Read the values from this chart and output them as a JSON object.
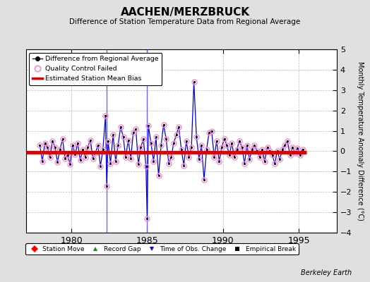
{
  "title": "AACHEN/MERZBRUCK",
  "subtitle": "Difference of Station Temperature Data from Regional Average",
  "ylabel": "Monthly Temperature Anomaly Difference (°C)",
  "xlim": [
    1977.0,
    1997.5
  ],
  "ylim": [
    -4,
    5
  ],
  "yticks": [
    -4,
    -3,
    -2,
    -1,
    0,
    1,
    2,
    3,
    4,
    5
  ],
  "xticks": [
    1980,
    1985,
    1990,
    1995
  ],
  "mean_bias": -0.05,
  "bias_start": 1977.0,
  "bias_end": 1995.5,
  "background_color": "#e0e0e0",
  "plot_bg_color": "#ffffff",
  "data_color": "#0000dd",
  "bias_color": "#dd0000",
  "qc_color": "#ff88cc",
  "berkeley_earth_text": "Berkeley Earth",
  "data": [
    [
      1977.92,
      0.3
    ],
    [
      1978.08,
      -0.5
    ],
    [
      1978.25,
      0.4
    ],
    [
      1978.42,
      0.2
    ],
    [
      1978.58,
      -0.3
    ],
    [
      1978.75,
      0.5
    ],
    [
      1978.92,
      0.2
    ],
    [
      1979.08,
      -0.55
    ],
    [
      1979.25,
      0.1
    ],
    [
      1979.42,
      0.6
    ],
    [
      1979.58,
      -0.35
    ],
    [
      1979.75,
      -0.2
    ],
    [
      1979.92,
      -0.65
    ],
    [
      1980.08,
      0.3
    ],
    [
      1980.25,
      -0.15
    ],
    [
      1980.42,
      0.4
    ],
    [
      1980.58,
      -0.45
    ],
    [
      1980.75,
      0.1
    ],
    [
      1980.92,
      -0.3
    ],
    [
      1981.08,
      0.2
    ],
    [
      1981.25,
      0.55
    ],
    [
      1981.42,
      -0.35
    ],
    [
      1981.58,
      -0.1
    ],
    [
      1981.75,
      0.3
    ],
    [
      1981.92,
      -0.75
    ],
    [
      1982.08,
      0.1
    ],
    [
      1982.25,
      1.75
    ],
    [
      1982.33,
      -1.7
    ],
    [
      1982.42,
      0.5
    ],
    [
      1982.58,
      -0.6
    ],
    [
      1982.75,
      0.8
    ],
    [
      1982.92,
      -0.5
    ],
    [
      1983.08,
      0.3
    ],
    [
      1983.25,
      1.2
    ],
    [
      1983.42,
      0.7
    ],
    [
      1983.58,
      -0.3
    ],
    [
      1983.75,
      0.55
    ],
    [
      1983.92,
      -0.35
    ],
    [
      1984.08,
      0.9
    ],
    [
      1984.25,
      1.1
    ],
    [
      1984.42,
      -0.65
    ],
    [
      1984.58,
      0.2
    ],
    [
      1984.75,
      0.6
    ],
    [
      1984.92,
      -0.75
    ],
    [
      1985.0,
      -3.3
    ],
    [
      1985.08,
      1.25
    ],
    [
      1985.25,
      0.4
    ],
    [
      1985.42,
      -0.5
    ],
    [
      1985.58,
      0.7
    ],
    [
      1985.75,
      -1.2
    ],
    [
      1985.92,
      0.3
    ],
    [
      1986.08,
      1.3
    ],
    [
      1986.25,
      0.6
    ],
    [
      1986.42,
      -0.6
    ],
    [
      1986.58,
      -0.3
    ],
    [
      1986.75,
      0.4
    ],
    [
      1986.92,
      0.8
    ],
    [
      1987.08,
      1.2
    ],
    [
      1987.25,
      0.1
    ],
    [
      1987.42,
      -0.7
    ],
    [
      1987.58,
      0.5
    ],
    [
      1987.75,
      -0.3
    ],
    [
      1987.92,
      0.2
    ],
    [
      1988.08,
      3.4
    ],
    [
      1988.25,
      0.7
    ],
    [
      1988.42,
      -0.4
    ],
    [
      1988.58,
      0.3
    ],
    [
      1988.75,
      -1.4
    ],
    [
      1988.92,
      0.1
    ],
    [
      1989.08,
      0.9
    ],
    [
      1989.25,
      1.0
    ],
    [
      1989.42,
      -0.3
    ],
    [
      1989.58,
      0.5
    ],
    [
      1989.75,
      -0.5
    ],
    [
      1989.92,
      0.2
    ],
    [
      1990.08,
      0.6
    ],
    [
      1990.25,
      0.3
    ],
    [
      1990.42,
      -0.2
    ],
    [
      1990.58,
      0.4
    ],
    [
      1990.75,
      -0.3
    ],
    [
      1990.92,
      0.1
    ],
    [
      1991.08,
      0.5
    ],
    [
      1991.25,
      0.2
    ],
    [
      1991.42,
      -0.6
    ],
    [
      1991.58,
      0.3
    ],
    [
      1991.75,
      -0.4
    ],
    [
      1991.92,
      0.1
    ],
    [
      1992.08,
      0.3
    ],
    [
      1992.25,
      0.0
    ],
    [
      1992.42,
      -0.3
    ],
    [
      1992.58,
      0.1
    ],
    [
      1992.75,
      -0.5
    ],
    [
      1992.92,
      0.2
    ],
    [
      1993.08,
      0.0
    ],
    [
      1993.25,
      -0.2
    ],
    [
      1993.42,
      -0.6
    ],
    [
      1993.58,
      0.0
    ],
    [
      1993.75,
      -0.4
    ],
    [
      1993.92,
      0.1
    ],
    [
      1994.08,
      0.3
    ],
    [
      1994.25,
      0.5
    ],
    [
      1994.42,
      -0.2
    ],
    [
      1994.58,
      0.2
    ],
    [
      1994.75,
      -0.1
    ],
    [
      1994.92,
      0.15
    ],
    [
      1995.08,
      -0.2
    ],
    [
      1995.25,
      0.1
    ]
  ],
  "qc_all": true,
  "qc_special": [
    1988.08
  ],
  "vertical_lines": [
    1982.33,
    1985.0
  ],
  "vert_line_color": "#6666ff"
}
